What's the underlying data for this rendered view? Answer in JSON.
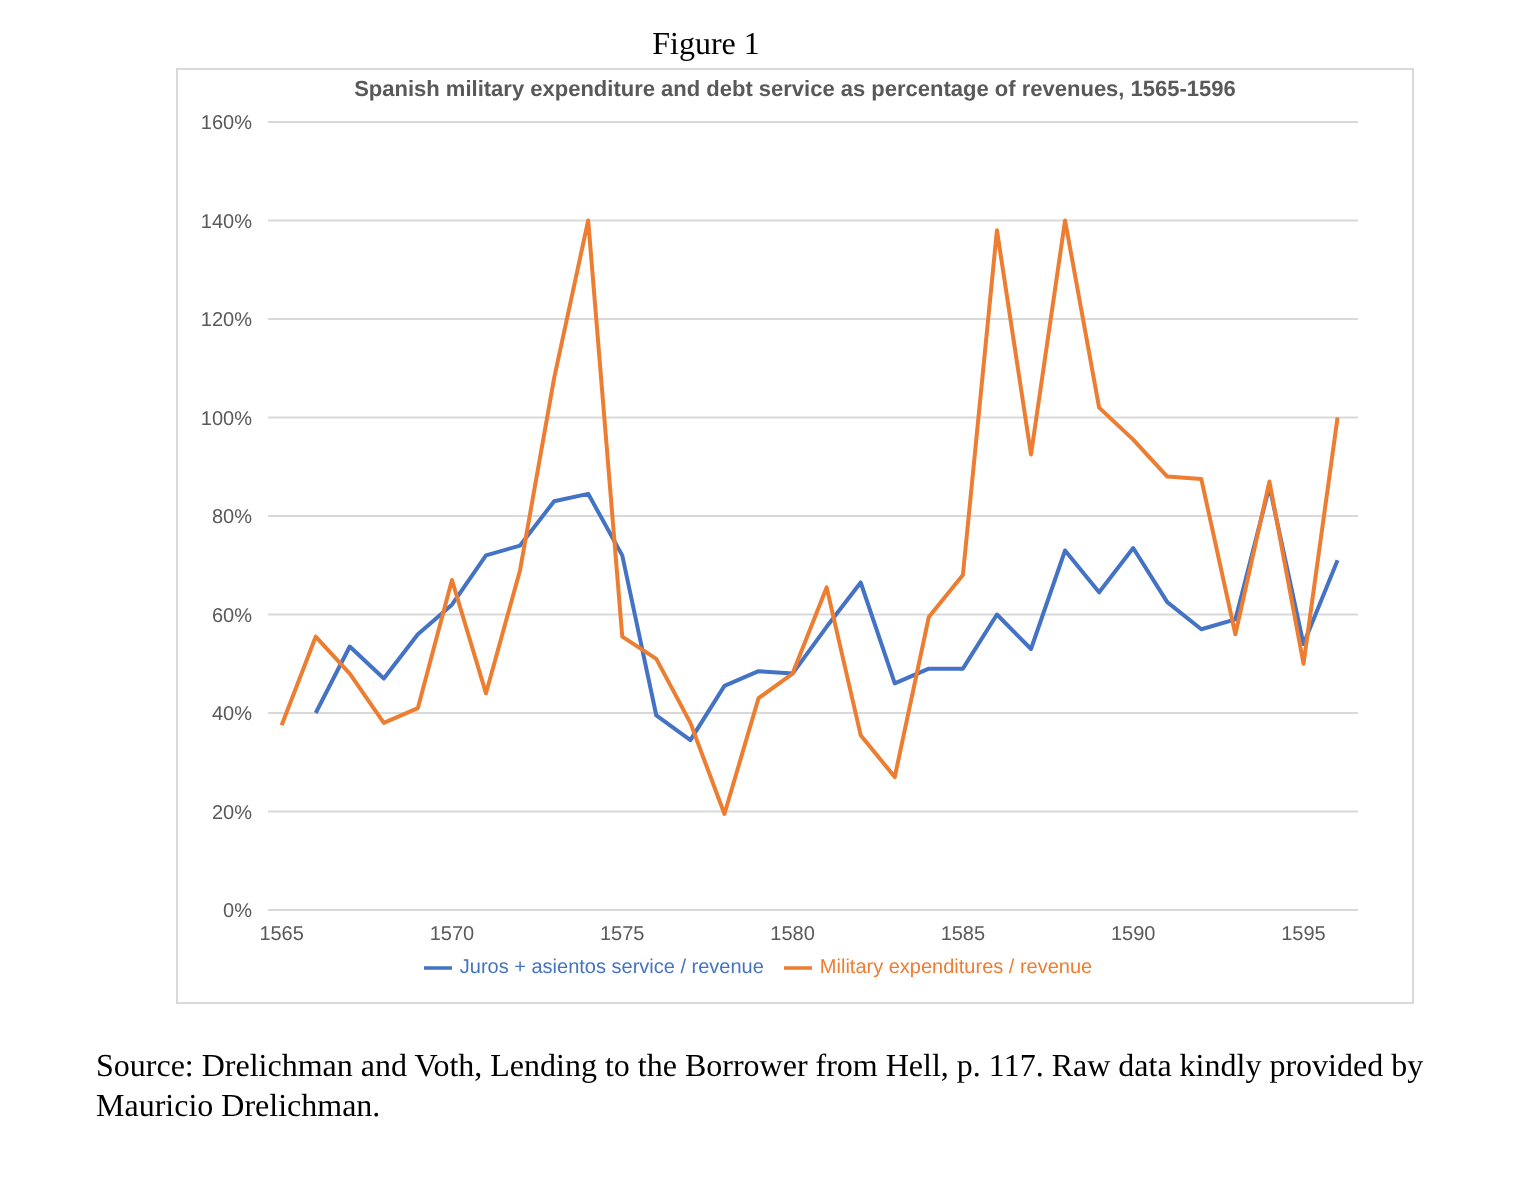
{
  "chart_data": {
    "type": "line",
    "title": "Figure 1",
    "subtitle": "Spanish military expenditure and debt service as percentage of revenues, 1565-1596",
    "x": [
      1565,
      1566,
      1567,
      1568,
      1569,
      1570,
      1571,
      1572,
      1573,
      1574,
      1575,
      1576,
      1577,
      1578,
      1579,
      1580,
      1581,
      1582,
      1583,
      1584,
      1585,
      1586,
      1587,
      1588,
      1589,
      1590,
      1591,
      1592,
      1593,
      1594,
      1595,
      1596
    ],
    "series": [
      {
        "name": "Juros + asientos service / revenue",
        "color": "#4472c4",
        "values": [
          null,
          40,
          53.5,
          47,
          56,
          62,
          72,
          74,
          83,
          84.5,
          72,
          39.5,
          34.5,
          45.5,
          48.5,
          48,
          57.5,
          66.5,
          46,
          49,
          49,
          60,
          53,
          73,
          64.5,
          73.5,
          62.5,
          57,
          59,
          86,
          54,
          71
        ]
      },
      {
        "name": "Military expenditures / revenue",
        "color": "#ed7d31",
        "values": [
          37.5,
          55.5,
          48,
          38,
          41,
          67,
          44,
          69,
          108,
          140,
          55.5,
          51,
          38,
          19.5,
          43,
          48,
          65.5,
          35.5,
          27,
          59.5,
          68,
          138,
          92.5,
          140,
          102,
          95.5,
          88,
          87.5,
          56,
          87,
          50,
          100
        ]
      }
    ],
    "xlim": [
      1564.6,
      1596.6
    ],
    "xticks": [
      1565,
      1570,
      1575,
      1580,
      1585,
      1590,
      1595
    ],
    "ylim": [
      0,
      160
    ],
    "yticks": [
      {
        "value": 0,
        "label": "0%"
      },
      {
        "value": 20,
        "label": "20%"
      },
      {
        "value": 40,
        "label": "40%"
      },
      {
        "value": 60,
        "label": "60%"
      },
      {
        "value": 80,
        "label": "80%"
      },
      {
        "value": 100,
        "label": "100%"
      },
      {
        "value": 120,
        "label": "120%"
      },
      {
        "value": 140,
        "label": "140%"
      },
      {
        "value": 160,
        "label": "160%"
      }
    ],
    "grid": "y",
    "legend": "bottom",
    "marker": "none",
    "line_style": "solid",
    "annotations": [
      "Source: Drelichman and Voth, Lending to the Borrower from Hell, p. 117. Raw data kindly provided by Mauricio Drelichman."
    ]
  }
}
